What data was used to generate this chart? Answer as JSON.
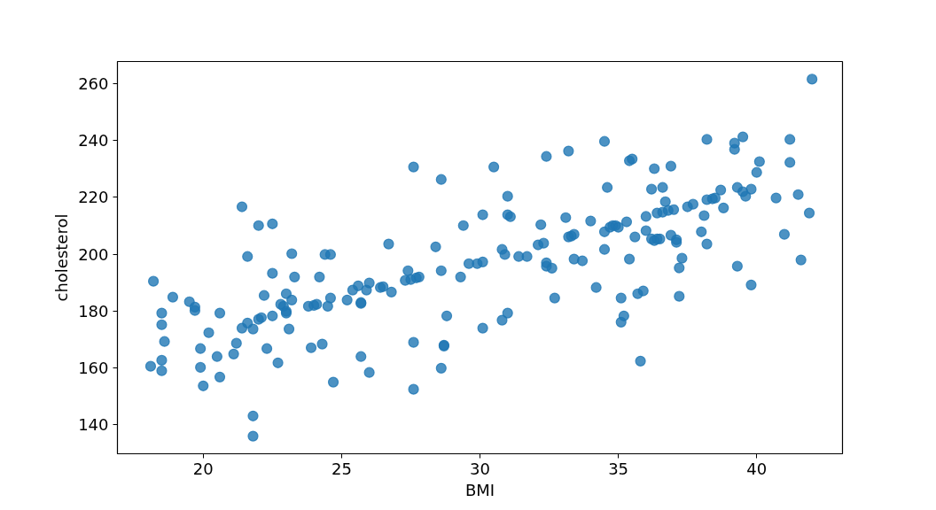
{
  "chart_data": {
    "type": "scatter",
    "xlabel": "BMI",
    "ylabel": "cholesterol",
    "xlim": [
      16.9,
      43.1
    ],
    "ylim": [
      129.8,
      267.8
    ],
    "xticks": [
      20,
      25,
      30,
      35,
      40
    ],
    "yticks": [
      140,
      160,
      180,
      200,
      220,
      240,
      260
    ],
    "grid": false,
    "marker": "circle",
    "series": [
      {
        "color": "#1f77b4",
        "x": [
          18.1,
          18.2,
          18.5,
          18.5,
          18.6,
          18.5,
          18.5,
          18.9,
          19.5,
          19.7,
          19.7,
          19.9,
          19.9,
          20.0,
          20.2,
          20.5,
          20.6,
          20.6,
          21.1,
          21.2,
          21.4,
          21.4,
          21.6,
          21.6,
          21.8,
          21.8,
          21.8,
          22.0,
          22.0,
          22.1,
          22.2,
          22.3,
          22.5,
          22.5,
          22.5,
          22.7,
          22.8,
          22.9,
          23.0,
          23.0,
          23.0,
          23.1,
          23.2,
          23.2,
          23.3,
          23.8,
          23.9,
          24.0,
          24.1,
          24.2,
          24.3,
          24.4,
          24.5,
          24.6,
          24.6,
          24.7,
          25.2,
          25.4,
          25.6,
          25.7,
          25.7,
          25.7,
          25.9,
          26.0,
          26.0,
          26.4,
          26.5,
          26.7,
          26.8,
          27.3,
          27.4,
          27.5,
          27.6,
          27.6,
          27.6,
          27.7,
          27.8,
          28.4,
          28.6,
          28.6,
          28.6,
          28.7,
          28.7,
          28.8,
          29.3,
          29.4,
          29.6,
          29.9,
          30.1,
          30.1,
          30.1,
          30.5,
          30.8,
          30.8,
          30.9,
          31.0,
          31.0,
          31.0,
          31.1,
          31.4,
          31.7,
          32.1,
          32.2,
          32.3,
          32.4,
          32.4,
          32.4,
          32.6,
          32.7,
          33.1,
          33.2,
          33.2,
          33.3,
          33.4,
          33.4,
          33.7,
          34.0,
          34.2,
          34.5,
          34.5,
          34.5,
          34.6,
          34.7,
          34.8,
          34.9,
          35.0,
          35.1,
          35.1,
          35.2,
          35.3,
          35.4,
          35.4,
          35.5,
          35.6,
          35.7,
          35.8,
          35.9,
          36.0,
          36.0,
          36.2,
          36.2,
          36.3,
          36.3,
          36.4,
          36.4,
          36.5,
          36.6,
          36.6,
          36.7,
          36.8,
          36.9,
          36.9,
          37.0,
          37.1,
          37.1,
          37.2,
          37.2,
          37.3,
          37.5,
          37.7,
          38.0,
          38.1,
          38.2,
          38.2,
          38.2,
          38.4,
          38.5,
          38.7,
          38.8,
          39.2,
          39.2,
          39.3,
          39.3,
          39.5,
          39.5,
          39.6,
          39.8,
          39.8,
          40.0,
          40.1,
          40.7,
          41.0,
          41.2,
          41.2,
          41.5,
          41.6,
          41.9,
          42.0
        ],
        "values": [
          160.6,
          190.5,
          179.3,
          175.2,
          169.3,
          162.7,
          159.0,
          184.9,
          183.3,
          181.4,
          180.2,
          166.8,
          160.2,
          153.7,
          172.4,
          164.0,
          156.8,
          179.3,
          164.9,
          168.7,
          174.0,
          216.7,
          199.2,
          175.8,
          173.7,
          143.1,
          136.0,
          210.1,
          177.1,
          177.7,
          185.5,
          166.8,
          210.7,
          178.3,
          193.3,
          161.8,
          182.4,
          181.7,
          186.1,
          179.9,
          179.3,
          173.7,
          200.2,
          183.9,
          192.0,
          181.7,
          167.1,
          182.0,
          182.4,
          192.0,
          168.4,
          199.9,
          181.7,
          199.9,
          184.6,
          155.0,
          183.9,
          187.4,
          188.9,
          182.7,
          183.0,
          164.0,
          187.4,
          189.9,
          158.4,
          188.3,
          188.6,
          203.6,
          186.7,
          190.8,
          194.2,
          191.1,
          169.0,
          230.7,
          152.5,
          191.7,
          192.0,
          202.6,
          194.2,
          226.3,
          159.9,
          168.0,
          167.7,
          178.3,
          192.0,
          210.1,
          196.7,
          196.7,
          197.3,
          174.0,
          213.9,
          230.7,
          201.7,
          176.8,
          199.9,
          179.3,
          220.4,
          213.9,
          213.2,
          199.2,
          199.2,
          203.3,
          210.4,
          203.9,
          234.4,
          197.0,
          195.8,
          195.1,
          184.6,
          212.9,
          236.3,
          206.1,
          206.4,
          207.0,
          198.3,
          197.7,
          211.7,
          188.3,
          239.7,
          207.9,
          201.7,
          223.5,
          209.5,
          210.1,
          210.1,
          209.5,
          184.6,
          176.1,
          178.3,
          211.4,
          198.3,
          232.9,
          233.5,
          206.1,
          186.1,
          162.4,
          187.1,
          208.3,
          213.3,
          222.9,
          205.4,
          204.8,
          230.1,
          205.4,
          214.5,
          205.4,
          223.5,
          214.8,
          218.5,
          215.4,
          231.0,
          206.7,
          215.7,
          204.2,
          205.1,
          195.2,
          185.2,
          198.6,
          216.7,
          217.6,
          207.9,
          213.6,
          240.4,
          203.6,
          219.2,
          219.5,
          219.8,
          222.6,
          216.3,
          236.9,
          239.1,
          195.8,
          223.5,
          222.0,
          241.3,
          220.4,
          222.9,
          189.2,
          228.8,
          232.6,
          219.8,
          207.0,
          240.4,
          232.3,
          221.0,
          198.0,
          214.5,
          261.6
        ]
      }
    ]
  }
}
